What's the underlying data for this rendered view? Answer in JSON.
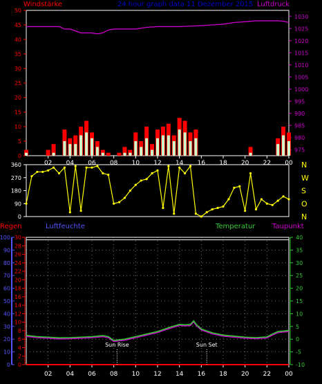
{
  "header": {
    "left": "Windstärke",
    "center": "24 hour graph data   11 Dezember 2015",
    "right": "Luftdruck"
  },
  "mid_legend": {
    "regen": "Regen",
    "luftfeuchte": "Luftfeuchte",
    "temperatur": "Temperatur",
    "taupunkt": "Taupunkt"
  },
  "annotations": {
    "sun_rise": "Sun Rise",
    "sun_set": "Sun Set"
  },
  "colors": {
    "wind_gust": "#ff0000",
    "wind_avg": "#ccffcc",
    "pressure": "#cc00cc",
    "direction": "#ffff00",
    "temperature": "#33cc33",
    "dewpoint": "#cc00cc",
    "humidity_axis": "#5555ff",
    "rain_axis": "#ff0000",
    "temp_axis": "#33cc33",
    "title": "#0000cc"
  },
  "chart_data": [
    {
      "type": "line",
      "title": "24 hour graph data   11 Dezember 2015",
      "ylabel_left": "Windstärke",
      "ylabel_right": "Luftdruck",
      "x_ticks": [
        "02",
        "04",
        "06",
        "08",
        "10",
        "12",
        "14",
        "16",
        "18",
        "20",
        "22",
        "00"
      ],
      "y_left_ticks": [
        0,
        5,
        10,
        15,
        20,
        25,
        30,
        35,
        40,
        45,
        50
      ],
      "ylim_left": [
        0,
        50
      ],
      "y_right_ticks": [
        975,
        980,
        985,
        990,
        995,
        1000,
        1005,
        1010,
        1015,
        1020,
        1025,
        1030
      ],
      "ylim_right": [
        972.5,
        1032.5
      ],
      "x_range_hours": [
        0,
        24
      ],
      "series": [
        {
          "name": "Luftdruck",
          "axis": "right",
          "x": [
            0,
            1,
            2,
            3,
            3.5,
            4,
            5,
            6,
            6.5,
            7,
            7.5,
            8,
            9,
            10,
            11,
            12,
            13,
            14,
            15,
            16,
            17,
            18,
            19,
            20,
            21,
            22,
            23,
            23.5,
            24
          ],
          "values": [
            1025.8,
            1025.8,
            1025.8,
            1025.8,
            1024.8,
            1024.8,
            1023.2,
            1023.2,
            1022.8,
            1023.2,
            1024.4,
            1024.8,
            1024.8,
            1024.8,
            1025.5,
            1025.8,
            1025.8,
            1025.8,
            1026.0,
            1026.2,
            1026.5,
            1026.8,
            1027.5,
            1027.8,
            1028.2,
            1028.2,
            1028.2,
            1028.0,
            1027.5
          ]
        },
        {
          "name": "Böen",
          "axis": "left",
          "x": [
            0,
            0.5,
            1,
            1.5,
            2,
            2.5,
            3,
            3.5,
            4,
            4.5,
            5,
            5.5,
            6,
            6.5,
            7,
            7.5,
            8,
            8.5,
            9,
            9.5,
            10,
            10.5,
            11,
            11.5,
            12,
            12.5,
            13,
            13.5,
            14,
            14.5,
            15,
            15.5,
            16,
            16.5,
            17,
            17.5,
            18,
            18.5,
            19,
            19.5,
            20,
            20.5,
            21,
            21.5,
            22,
            22.5,
            23,
            23.5,
            24
          ],
          "values": [
            2,
            0,
            0,
            0,
            2,
            4,
            0,
            9,
            6,
            7,
            10,
            12,
            8,
            5,
            2,
            1,
            0,
            1,
            3,
            2,
            8,
            5,
            10,
            4,
            9,
            10,
            11,
            7,
            13,
            12,
            8,
            9,
            0,
            0,
            0,
            0,
            0,
            0,
            0,
            0,
            0,
            3,
            0,
            0,
            0,
            0,
            6,
            10,
            8
          ]
        },
        {
          "name": "Wind",
          "axis": "left",
          "x": [
            0,
            0.5,
            1,
            1.5,
            2,
            2.5,
            3,
            3.5,
            4,
            4.5,
            5,
            5.5,
            6,
            6.5,
            7,
            7.5,
            8,
            8.5,
            9,
            9.5,
            10,
            10.5,
            11,
            11.5,
            12,
            12.5,
            13,
            13.5,
            14,
            14.5,
            15,
            15.5,
            16,
            16.5,
            17,
            17.5,
            18,
            18.5,
            19,
            19.5,
            20,
            20.5,
            21,
            21.5,
            22,
            22.5,
            23,
            23.5,
            24
          ],
          "values": [
            1,
            0,
            0,
            0,
            0,
            1,
            0,
            5,
            4,
            4,
            7,
            8,
            6,
            3,
            1,
            0,
            0,
            0,
            1,
            1,
            5,
            3,
            6,
            2,
            6,
            7,
            7,
            5,
            9,
            8,
            5,
            6,
            0,
            0,
            0,
            0,
            0,
            0,
            0,
            0,
            0,
            1,
            0,
            0,
            0,
            0,
            4,
            7,
            5
          ]
        }
      ]
    },
    {
      "type": "scatter",
      "ylabel_right": "N W S O N",
      "x_ticks": [],
      "y_ticks": [
        0,
        90,
        180,
        270,
        360
      ],
      "ylim": [
        0,
        360
      ],
      "x_range_hours": [
        0,
        24
      ],
      "series": [
        {
          "name": "Windrichtung",
          "x": [
            0,
            0.5,
            1,
            1.5,
            2,
            2.5,
            3,
            3.5,
            4,
            4.5,
            5,
            5.5,
            6,
            6.5,
            7,
            7.5,
            8,
            8.5,
            9,
            9.5,
            10,
            10.5,
            11,
            11.5,
            12,
            12.5,
            13,
            13.5,
            14,
            14.5,
            15,
            15.5,
            16,
            16.5,
            17,
            17.5,
            18,
            18.5,
            19,
            19.5,
            20,
            20.5,
            21,
            21.5,
            22,
            22.5,
            23,
            23.5,
            24
          ],
          "values": [
            90,
            280,
            310,
            310,
            320,
            340,
            300,
            340,
            30,
            350,
            40,
            340,
            340,
            350,
            300,
            290,
            90,
            100,
            130,
            180,
            220,
            250,
            260,
            300,
            320,
            60,
            350,
            20,
            340,
            300,
            350,
            20,
            0,
            30,
            50,
            60,
            70,
            120,
            200,
            210,
            40,
            300,
            50,
            120,
            90,
            80,
            110,
            140,
            120
          ]
        }
      ]
    },
    {
      "type": "line",
      "labels": [
        "Regen",
        "Luftfeuchte",
        "Temperatur",
        "Taupunkt"
      ],
      "x_ticks": [
        "02",
        "04",
        "06",
        "08",
        "10",
        "12",
        "14",
        "16",
        "18",
        "20",
        "22",
        "00"
      ],
      "y_rain_ticks": [
        0,
        2,
        4,
        6,
        8,
        10,
        12,
        14,
        16,
        18,
        20,
        22,
        24,
        26,
        28,
        30
      ],
      "ylim_rain": [
        0,
        30
      ],
      "y_humidity_ticks": [
        0,
        10,
        20,
        30,
        40,
        50,
        60,
        70,
        80,
        90,
        100
      ],
      "ylim_humidity": [
        0,
        100
      ],
      "y_temp_ticks": [
        -10,
        -5,
        0,
        5,
        10,
        15,
        20,
        25,
        30,
        35,
        40
      ],
      "ylim_temp": [
        -10,
        40
      ],
      "x_range_hours": [
        0,
        24
      ],
      "series": [
        {
          "name": "Temperatur",
          "axis": "temp",
          "x": [
            0,
            1,
            2,
            3,
            4,
            5,
            6,
            7,
            7.5,
            8,
            9,
            10,
            11,
            12,
            13,
            14,
            14.5,
            15,
            15.3,
            15.6,
            16,
            17,
            18,
            19,
            20,
            21,
            22,
            22.5,
            23,
            24
          ],
          "values": [
            1.5,
            1.0,
            0.8,
            0.5,
            0.6,
            0.8,
            1.0,
            1.4,
            1.0,
            -0.5,
            0.0,
            1.0,
            2.0,
            3.0,
            4.5,
            5.8,
            5.6,
            5.8,
            7.2,
            5.5,
            4.0,
            2.5,
            1.6,
            1.2,
            0.8,
            0.6,
            0.9,
            2.0,
            3.0,
            3.4
          ]
        },
        {
          "name": "Taupunkt",
          "axis": "temp",
          "x": [
            0,
            1,
            2,
            3,
            4,
            5,
            6,
            7,
            7.5,
            8,
            9,
            10,
            11,
            12,
            13,
            14,
            14.5,
            15,
            15.3,
            15.6,
            16,
            17,
            18,
            19,
            20,
            21,
            22,
            22.5,
            23,
            24
          ],
          "values": [
            1.1,
            0.6,
            0.4,
            0.1,
            0.2,
            0.4,
            0.6,
            1.0,
            0.6,
            -0.9,
            -0.4,
            0.6,
            1.6,
            2.6,
            4.1,
            5.4,
            5.2,
            5.4,
            6.8,
            5.1,
            3.6,
            2.1,
            1.2,
            0.8,
            0.4,
            0.2,
            0.5,
            1.6,
            2.6,
            3.0
          ]
        },
        {
          "name": "Luftfeuchte",
          "axis": "humidity",
          "x": [
            0,
            24
          ],
          "values": [
            98,
            98
          ]
        },
        {
          "name": "Regen",
          "axis": "rain",
          "x": [
            0,
            24
          ],
          "values": [
            0,
            0
          ]
        }
      ]
    }
  ]
}
